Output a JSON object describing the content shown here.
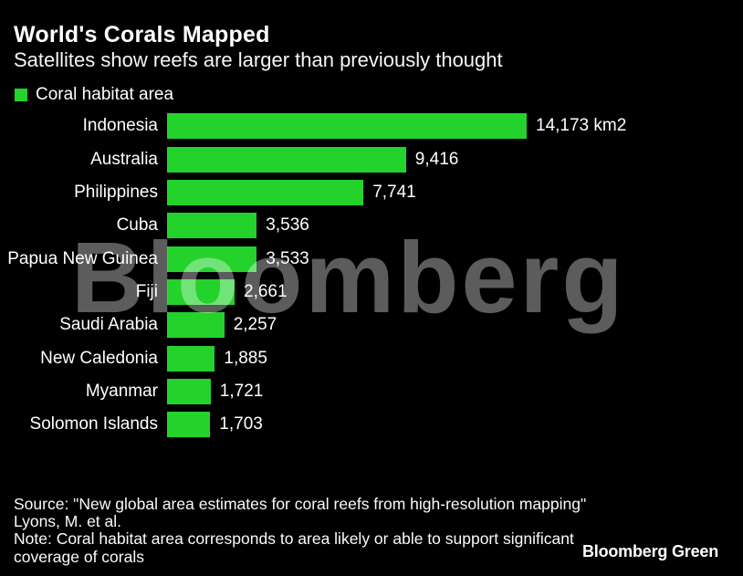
{
  "header": {
    "title": "World's Corals Mapped",
    "subtitle": "Satellites show reefs are larger than previously thought"
  },
  "legend": {
    "label": "Coral habitat area"
  },
  "chart_data": {
    "type": "bar",
    "orientation": "horizontal",
    "title": "World's Corals Mapped",
    "subtitle": "Satellites show reefs are larger than previously thought",
    "series_name": "Coral habitat area",
    "unit": "km2",
    "categories": [
      "Indonesia",
      "Australia",
      "Philippines",
      "Cuba",
      "Papua New Guinea",
      "Fiji",
      "Saudi Arabia",
      "New Caledonia",
      "Myanmar",
      "Solomon Islands"
    ],
    "values": [
      14173,
      9416,
      7741,
      3536,
      3533,
      2661,
      2257,
      1885,
      1721,
      1703
    ],
    "value_labels": [
      "14,173 km2",
      "9,416",
      "7,741",
      "3,536",
      "3,533",
      "2,661",
      "2,257",
      "1,885",
      "1,721",
      "1,703"
    ],
    "xlim": [
      0,
      14173
    ],
    "grid": false,
    "legend_position": "top-left",
    "bar_color": "#23d32c"
  },
  "watermark": {
    "text": "Bloomberg",
    "color": "rgba(255,255,255,0.36)"
  },
  "footer": {
    "lines": [
      "Source: \"New global area estimates for coral reefs from high-resolution mapping\"",
      "Lyons, M. et al.",
      "Note: Coral habitat area corresponds to area likely or able to support significant",
      "coverage of corals"
    ],
    "logo": "Bloomberg Green"
  },
  "colors": {
    "background": "#000000",
    "bar": "#23d32c",
    "text": "#ffffff",
    "watermark_on_black": "#5e5e5e"
  }
}
